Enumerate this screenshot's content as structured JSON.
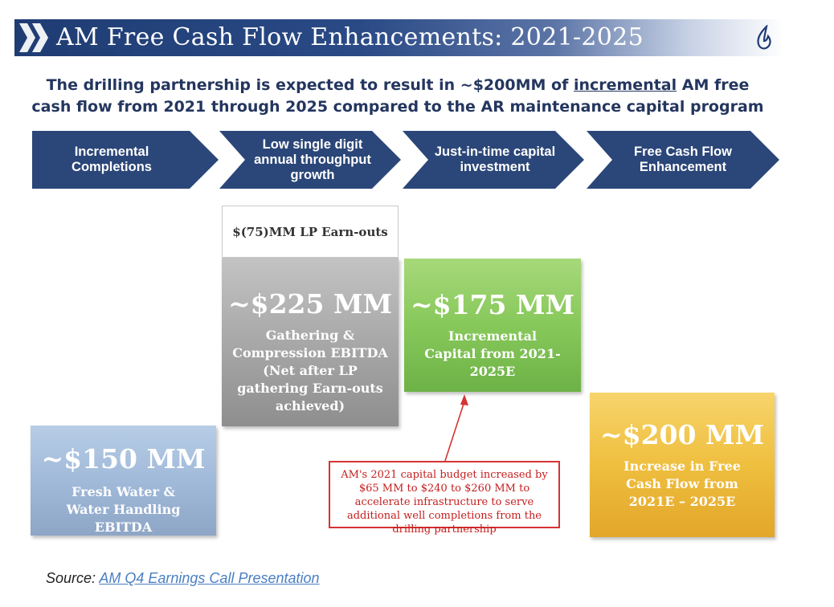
{
  "header": {
    "title": "AM Free Cash Flow Enhancements: 2021-2025",
    "chevron_icon": "double-chevron-right-icon",
    "logo_icon": "flame-logo-icon"
  },
  "subtitle": {
    "line1_pre": "The drilling partnership is expected to result in ~$200MM of ",
    "line1_underlined": "incremental",
    "line1_post": " AM free",
    "line2": "cash flow from 2021 through 2025 compared to the AR maintenance capital program"
  },
  "steps": [
    {
      "label": "Incremental Completions"
    },
    {
      "label": "Low single digit annual throughput growth"
    },
    {
      "label": "Just-in-time capital investment"
    },
    {
      "label": "Free Cash Flow Enhancement"
    }
  ],
  "boxes": {
    "water": {
      "value": "~$150 MM",
      "desc": "Fresh Water & Water Handling EBITDA",
      "color": "#9fb8d8"
    },
    "earnout": {
      "label": "$(75)MM LP Earn-outs"
    },
    "gathering": {
      "value": "~$225 MM",
      "desc": "Gathering & Compression EBITDA (Net after LP gathering Earn-outs achieved)",
      "color": "#a8a8a8"
    },
    "capital": {
      "value": "~$175 MM",
      "desc": "Incremental Capital from 2021-2025E",
      "color": "#87c85a"
    },
    "fcf": {
      "value": "~$200 MM",
      "desc_line1": "Increase in Free Cash Flow from",
      "desc_line2": "2021E – 2025E",
      "color": "#efbf3f"
    }
  },
  "callout": {
    "text": "AM's 2021 capital budget increased by $65 MM to $240 to $260 MM to accelerate infrastructure to serve additional well completions from the drilling partnership",
    "color": "#d63333"
  },
  "source": {
    "prefix": "Source: ",
    "link": "AM Q4 Earnings Call Presentation"
  },
  "colors": {
    "navy": "#1f3c73",
    "step_fill": "#2b4678"
  }
}
